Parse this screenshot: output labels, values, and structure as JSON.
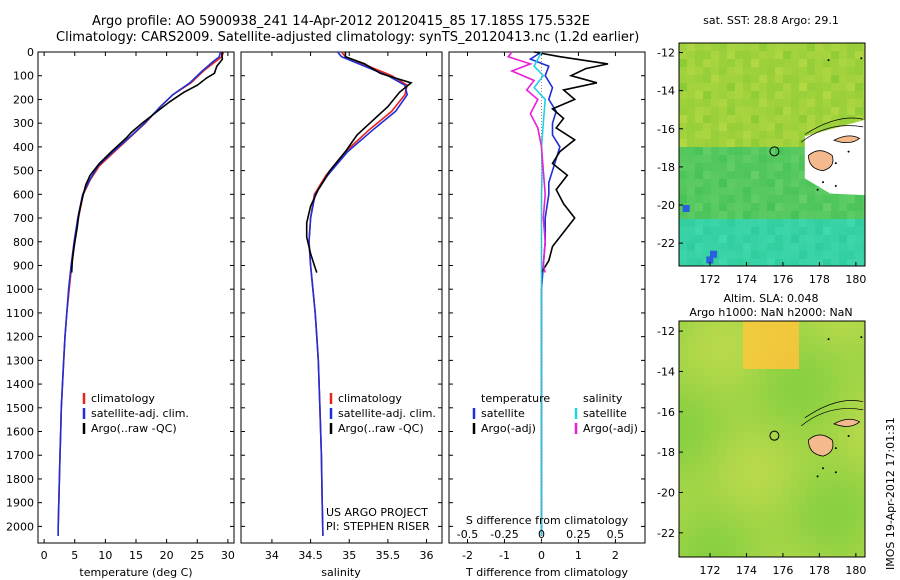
{
  "header": {
    "line1": "Argo profile: AO 5900938_241 14-Apr-2012 20120415_85 17.185S 175.532E",
    "line2": "Climatology: CARS2009. Satellite-adjusted climatology: synTS_20120413.nc (1.2d earlier)"
  },
  "side_text": "IMOS 19-Apr-2012 17:01:31",
  "colors": {
    "climatology": "#e8231f",
    "satellite": "#1f2fd6",
    "argo": "#000000",
    "sat_salinity": "#1fd2e8",
    "argo_salinity": "#e81fd6"
  },
  "chart_data": [
    {
      "type": "line",
      "id": "temperature",
      "xlabel": "temperature (deg C)",
      "xlim": [
        -1,
        31
      ],
      "xticks": [
        0,
        5,
        10,
        15,
        20,
        25,
        30
      ],
      "ylim": [
        0,
        2070
      ],
      "yticks": [
        0,
        100,
        200,
        300,
        400,
        500,
        600,
        700,
        800,
        900,
        1000,
        1100,
        1200,
        1300,
        1400,
        1500,
        1600,
        1700,
        1800,
        1900,
        2000
      ],
      "legend": [
        "climatology",
        "satellite-adj. clim.",
        "Argo(..raw -QC)"
      ],
      "series": [
        {
          "name": "climatology",
          "color": "#e8231f",
          "points": [
            [
              29.3,
              0
            ],
            [
              29,
              20
            ],
            [
              28,
              40
            ],
            [
              26,
              80
            ],
            [
              24,
              130
            ],
            [
              21,
              180
            ],
            [
              19,
              230
            ],
            [
              16.5,
              300
            ],
            [
              14,
              360
            ],
            [
              11.5,
              420
            ],
            [
              9,
              480
            ],
            [
              7.5,
              540
            ],
            [
              6.4,
              600
            ],
            [
              5.6,
              700
            ],
            [
              5,
              800
            ],
            [
              4.5,
              900
            ],
            [
              4.1,
              1000
            ],
            [
              3.7,
              1100
            ],
            [
              3.4,
              1200
            ],
            [
              3.2,
              1300
            ],
            [
              3,
              1400
            ],
            [
              2.8,
              1500
            ],
            [
              2.7,
              1600
            ],
            [
              2.6,
              1700
            ],
            [
              2.5,
              1800
            ],
            [
              2.4,
              1900
            ],
            [
              2.3,
              2000
            ],
            [
              2.3,
              2040
            ]
          ]
        },
        {
          "name": "satellite-adj. clim.",
          "color": "#1f2fd6",
          "points": [
            [
              28.8,
              0
            ],
            [
              28.6,
              20
            ],
            [
              27.6,
              40
            ],
            [
              25.8,
              80
            ],
            [
              23.8,
              130
            ],
            [
              21,
              180
            ],
            [
              19,
              230
            ],
            [
              16.4,
              300
            ],
            [
              13.9,
              360
            ],
            [
              11.3,
              420
            ],
            [
              8.8,
              480
            ],
            [
              7.4,
              540
            ],
            [
              6.3,
              600
            ],
            [
              5.5,
              700
            ],
            [
              4.9,
              800
            ],
            [
              4.4,
              900
            ],
            [
              4,
              1000
            ],
            [
              3.7,
              1100
            ],
            [
              3.4,
              1200
            ],
            [
              3.2,
              1300
            ],
            [
              3,
              1400
            ],
            [
              2.8,
              1500
            ],
            [
              2.7,
              1600
            ],
            [
              2.6,
              1700
            ],
            [
              2.5,
              1800
            ],
            [
              2.4,
              1900
            ],
            [
              2.3,
              2000
            ],
            [
              2.3,
              2040
            ]
          ]
        },
        {
          "name": "Argo(..raw -QC)",
          "color": "#000000",
          "points": [
            [
              29.1,
              0
            ],
            [
              29,
              10
            ],
            [
              29.1,
              30
            ],
            [
              28.2,
              60
            ],
            [
              27.8,
              90
            ],
            [
              26.5,
              110
            ],
            [
              25,
              140
            ],
            [
              22.8,
              170
            ],
            [
              20.5,
              210
            ],
            [
              18.5,
              250
            ],
            [
              16,
              300
            ],
            [
              14.2,
              340
            ],
            [
              13.5,
              360
            ],
            [
              11,
              420
            ],
            [
              9,
              470
            ],
            [
              7.5,
              520
            ],
            [
              6.8,
              560
            ],
            [
              6.2,
              620
            ],
            [
              5.7,
              680
            ],
            [
              5.4,
              740
            ],
            [
              4.9,
              820
            ],
            [
              4.6,
              880
            ],
            [
              4.5,
              930
            ]
          ]
        }
      ]
    },
    {
      "type": "line",
      "id": "salinity",
      "xlabel": "salinity",
      "xlim": [
        33.6,
        36.2
      ],
      "xticks": [
        34,
        34.5,
        35,
        35.5,
        36
      ],
      "ylim": [
        0,
        2070
      ],
      "legend": [
        "climatology",
        "satellite-adj. clim.",
        "Argo(..raw -QC)"
      ],
      "annotation": [
        "US ARGO PROJECT",
        "PI: STEPHEN RISER"
      ],
      "series": [
        {
          "name": "climatology",
          "color": "#e8231f",
          "points": [
            [
              34.9,
              0
            ],
            [
              34.95,
              20
            ],
            [
              35.25,
              60
            ],
            [
              35.55,
              100
            ],
            [
              35.75,
              140
            ],
            [
              35.72,
              180
            ],
            [
              35.55,
              250
            ],
            [
              35.25,
              330
            ],
            [
              34.95,
              420
            ],
            [
              34.7,
              520
            ],
            [
              34.55,
              600
            ],
            [
              34.5,
              700
            ],
            [
              34.48,
              800
            ],
            [
              34.5,
              900
            ],
            [
              34.53,
              1000
            ],
            [
              34.56,
              1100
            ],
            [
              34.58,
              1200
            ],
            [
              34.6,
              1300
            ],
            [
              34.62,
              1500
            ],
            [
              34.64,
              1700
            ],
            [
              34.65,
              1900
            ],
            [
              34.66,
              2040
            ]
          ]
        },
        {
          "name": "satellite-adj. clim.",
          "color": "#1f2fd6",
          "points": [
            [
              34.85,
              0
            ],
            [
              34.9,
              20
            ],
            [
              35.2,
              60
            ],
            [
              35.5,
              100
            ],
            [
              35.72,
              140
            ],
            [
              35.75,
              180
            ],
            [
              35.6,
              250
            ],
            [
              35.3,
              330
            ],
            [
              34.98,
              420
            ],
            [
              34.72,
              520
            ],
            [
              34.56,
              600
            ],
            [
              34.5,
              700
            ],
            [
              34.48,
              800
            ],
            [
              34.5,
              900
            ],
            [
              34.53,
              1000
            ],
            [
              34.56,
              1100
            ],
            [
              34.58,
              1200
            ],
            [
              34.6,
              1300
            ],
            [
              34.62,
              1500
            ],
            [
              34.64,
              1700
            ],
            [
              34.65,
              1900
            ],
            [
              34.66,
              2040
            ]
          ]
        },
        {
          "name": "Argo(..raw -QC)",
          "color": "#000000",
          "points": [
            [
              34.95,
              0
            ],
            [
              34.95,
              20
            ],
            [
              35.2,
              50
            ],
            [
              35.4,
              90
            ],
            [
              35.6,
              110
            ],
            [
              35.8,
              130
            ],
            [
              35.65,
              170
            ],
            [
              35.5,
              230
            ],
            [
              35.3,
              290
            ],
            [
              35.1,
              350
            ],
            [
              34.95,
              420
            ],
            [
              34.75,
              500
            ],
            [
              34.6,
              580
            ],
            [
              34.5,
              650
            ],
            [
              34.45,
              720
            ],
            [
              34.45,
              780
            ],
            [
              34.5,
              850
            ],
            [
              34.55,
              900
            ],
            [
              34.58,
              930
            ]
          ]
        }
      ]
    },
    {
      "type": "line",
      "id": "difference",
      "xlabel": "T difference from climatology",
      "xlabel_top": "S difference from climatology",
      "xlim": [
        -2.5,
        2.8
      ],
      "xticks": [
        -2,
        -1,
        0,
        1,
        2
      ],
      "sticks_labels": [
        "-0.5",
        "-0.25",
        "0",
        "0.25",
        "0.5"
      ],
      "sticks": [
        -2,
        -1,
        0,
        1,
        2
      ],
      "ylim": [
        0,
        2070
      ],
      "legend_left": [
        "temperature",
        "satellite",
        "Argo(-adj)"
      ],
      "legend_right": [
        "salinity",
        "satellite",
        "Argo(-adj)"
      ],
      "series": [
        {
          "name": "T satellite",
          "color": "#1f2fd6",
          "points": [
            [
              0,
              0
            ],
            [
              -0.3,
              30
            ],
            [
              0.2,
              60
            ],
            [
              0.1,
              100
            ],
            [
              0.3,
              150
            ],
            [
              0.2,
              200
            ],
            [
              0.4,
              250
            ],
            [
              0.3,
              300
            ],
            [
              0.3,
              350
            ],
            [
              0.5,
              400
            ],
            [
              0.4,
              450
            ],
            [
              0.3,
              500
            ],
            [
              0.2,
              550
            ],
            [
              0.2,
              600
            ],
            [
              0.1,
              700
            ],
            [
              0.1,
              800
            ],
            [
              0.05,
              900
            ],
            [
              0,
              1000
            ],
            [
              0,
              1200
            ],
            [
              0,
              1500
            ],
            [
              0,
              2040
            ]
          ]
        },
        {
          "name": "T Argo",
          "color": "#000000",
          "points": [
            [
              -0.2,
              0
            ],
            [
              0.5,
              20
            ],
            [
              1.8,
              50
            ],
            [
              1.2,
              70
            ],
            [
              0.8,
              100
            ],
            [
              1.5,
              130
            ],
            [
              0.6,
              160
            ],
            [
              0.9,
              200
            ],
            [
              0.3,
              240
            ],
            [
              0.6,
              280
            ],
            [
              0.4,
              320
            ],
            [
              0.9,
              370
            ],
            [
              0.5,
              420
            ],
            [
              0.3,
              470
            ],
            [
              0.7,
              520
            ],
            [
              0.4,
              580
            ],
            [
              0.6,
              640
            ],
            [
              0.9,
              700
            ],
            [
              0.6,
              760
            ],
            [
              0.3,
              820
            ],
            [
              0.2,
              880
            ],
            [
              0,
              930
            ]
          ]
        },
        {
          "name": "S satellite",
          "color": "#1fd2e8",
          "points": [
            [
              0,
              0
            ],
            [
              -0.1,
              30
            ],
            [
              -0.2,
              60
            ],
            [
              0.05,
              100
            ],
            [
              -0.2,
              150
            ],
            [
              0.1,
              200
            ],
            [
              0.05,
              300
            ],
            [
              0,
              400
            ],
            [
              0.02,
              500
            ],
            [
              0,
              600
            ],
            [
              0,
              800
            ],
            [
              0,
              1000
            ],
            [
              0,
              1500
            ],
            [
              0,
              2040
            ]
          ]
        },
        {
          "name": "S Argo",
          "color": "#e81fd6",
          "points": [
            [
              -0.8,
              0
            ],
            [
              -0.9,
              20
            ],
            [
              -0.3,
              50
            ],
            [
              -0.8,
              80
            ],
            [
              -0.2,
              120
            ],
            [
              -0.4,
              160
            ],
            [
              -0.1,
              200
            ],
            [
              -0.3,
              260
            ],
            [
              -0.1,
              320
            ],
            [
              0,
              400
            ],
            [
              0.05,
              500
            ],
            [
              0.1,
              600
            ],
            [
              0.05,
              700
            ],
            [
              0.1,
              800
            ],
            [
              0.05,
              900
            ],
            [
              0.1,
              930
            ]
          ]
        }
      ]
    },
    {
      "type": "heatmap",
      "id": "sst_map",
      "title": "sat. SST: 28.8 Argo: 29.1",
      "xlim": [
        170.3,
        180.5
      ],
      "ylim": [
        -23.2,
        -11.5
      ],
      "xticks": [
        172,
        174,
        176,
        178,
        180
      ],
      "yticks": [
        -12,
        -14,
        -16,
        -18,
        -20,
        -22
      ],
      "marker": [
        175.532,
        -17.185
      ]
    },
    {
      "type": "heatmap",
      "id": "sla_map",
      "title_line1": "Altim. SLA: 0.048",
      "title_line2": "Argo h1000: NaN h2000: NaN",
      "xlim": [
        170.3,
        180.5
      ],
      "ylim": [
        -23.2,
        -11.5
      ],
      "xticks": [
        172,
        174,
        176,
        178,
        180
      ],
      "yticks": [
        -12,
        -14,
        -16,
        -18,
        -20,
        -22
      ],
      "marker": [
        175.532,
        -17.185
      ]
    }
  ]
}
